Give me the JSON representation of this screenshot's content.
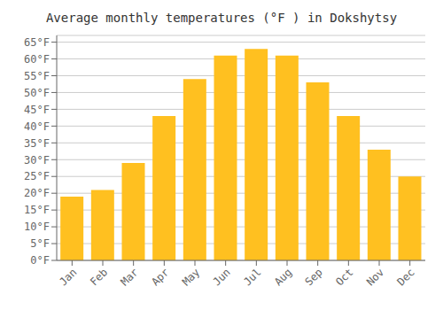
{
  "chart_data": {
    "type": "bar",
    "title": "Average monthly temperatures (°F ) in Dokshytsy",
    "categories": [
      "Jan",
      "Feb",
      "Mar",
      "Apr",
      "May",
      "Jun",
      "Jul",
      "Aug",
      "Sep",
      "Oct",
      "Nov",
      "Dec"
    ],
    "values": [
      19,
      21,
      29,
      43,
      54,
      61,
      63,
      61,
      53,
      43,
      33,
      25
    ],
    "color": "#FFC020",
    "ylim": [
      0,
      67
    ],
    "yticks": [
      {
        "value": 0,
        "label": "0°F"
      },
      {
        "value": 5,
        "label": "5°F"
      },
      {
        "value": 10,
        "label": "10°F"
      },
      {
        "value": 15,
        "label": "15°F"
      },
      {
        "value": 20,
        "label": "20°F"
      },
      {
        "value": 25,
        "label": "25°F"
      },
      {
        "value": 30,
        "label": "30°F"
      },
      {
        "value": 35,
        "label": "35°F"
      },
      {
        "value": 40,
        "label": "40°F"
      },
      {
        "value": 45,
        "label": "45°F"
      },
      {
        "value": 50,
        "label": "50°F"
      },
      {
        "value": 55,
        "label": "55°F"
      },
      {
        "value": 60,
        "label": "60°F"
      },
      {
        "value": 65,
        "label": "65°F"
      }
    ],
    "grid": true
  }
}
